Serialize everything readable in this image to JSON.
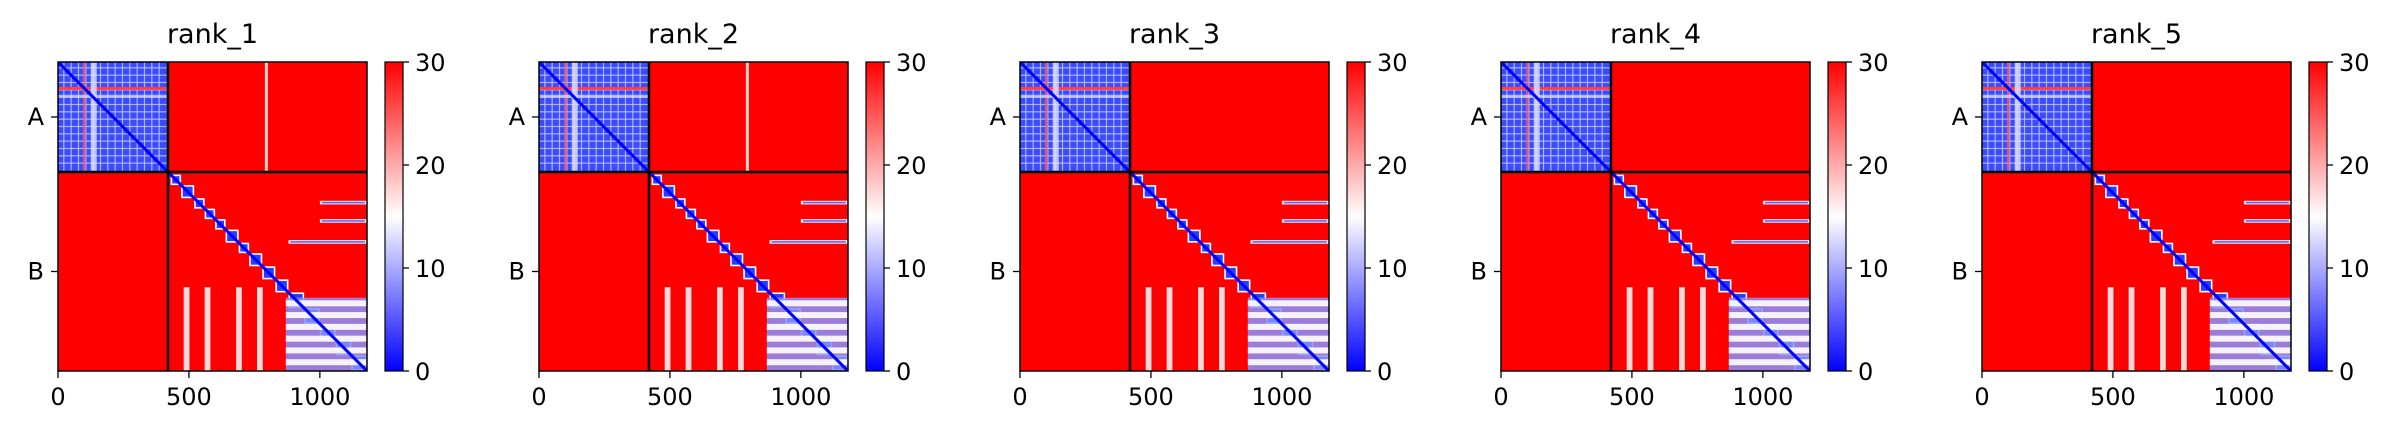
{
  "chart_data": {
    "type": "heatmap",
    "description_note": "",
    "panels": [
      {
        "title": "rank_1",
        "col_stripe_at": 790
      },
      {
        "title": "rank_2",
        "col_stripe_at": 790
      },
      {
        "title": "rank_3",
        "col_stripe_at": null
      },
      {
        "title": "rank_4",
        "col_stripe_at": null
      },
      {
        "title": "rank_5",
        "col_stripe_at": null
      }
    ],
    "chains": [
      {
        "label": "A",
        "start": 0,
        "end": 420
      },
      {
        "label": "B",
        "start": 420,
        "end": 1180
      }
    ],
    "xlim": [
      0,
      1180
    ],
    "xticks": [
      0,
      500,
      1000
    ],
    "xtick_labels": [
      "0",
      "500",
      "1000"
    ],
    "colorbar": {
      "vmin": 0,
      "vmax": 30,
      "ticks": [
        0,
        10,
        20,
        30
      ],
      "tick_labels": [
        "0",
        "10",
        "20",
        "30"
      ],
      "colormap": "bwr",
      "colors": {
        "low": "#0000ff",
        "mid": "#ffffff",
        "high": "#ff0000"
      }
    },
    "chain_divider_color": "#000000",
    "low_error_color": "#0000ff",
    "high_error_color": "#ff0000"
  }
}
